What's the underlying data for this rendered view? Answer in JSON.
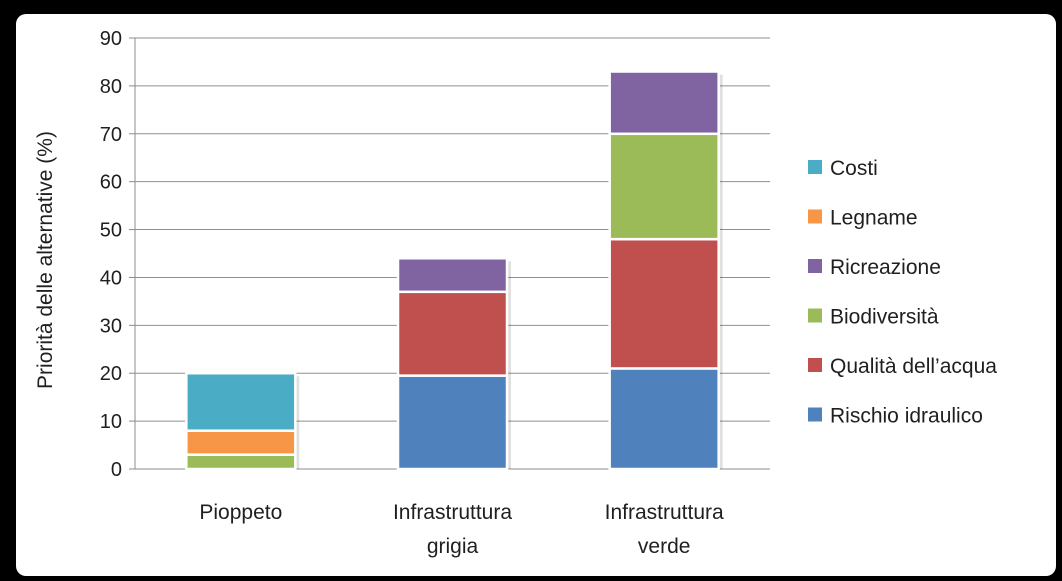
{
  "chart_data": {
    "type": "bar",
    "stacked": true,
    "categories": [
      [
        "Pioppeto"
      ],
      [
        "Infrastruttura",
        "grigia"
      ],
      [
        "Infrastruttura",
        "verde"
      ]
    ],
    "ylabel": "Priorità delle alternative (%)",
    "ylim": [
      0,
      90
    ],
    "yticks": [
      0,
      10,
      20,
      30,
      40,
      50,
      60,
      70,
      80,
      90
    ],
    "grid": true,
    "legend_position": "right",
    "series": [
      {
        "name": "Rischio idraulico",
        "color": "#4f81bd",
        "values": [
          0,
          19.5,
          21
        ]
      },
      {
        "name": "Qualità dell’acqua",
        "color": "#c0504d",
        "values": [
          0,
          17.5,
          27
        ]
      },
      {
        "name": "Biodiversità",
        "color": "#9bbb59",
        "values": [
          3,
          0,
          22
        ]
      },
      {
        "name": "Ricreazione",
        "color": "#8064a2",
        "values": [
          0,
          7,
          13
        ]
      },
      {
        "name": "Legname",
        "color": "#f79646",
        "values": [
          5,
          0,
          0
        ]
      },
      {
        "name": "Costi",
        "color": "#4bacc6",
        "values": [
          12,
          0,
          0
        ]
      }
    ]
  }
}
